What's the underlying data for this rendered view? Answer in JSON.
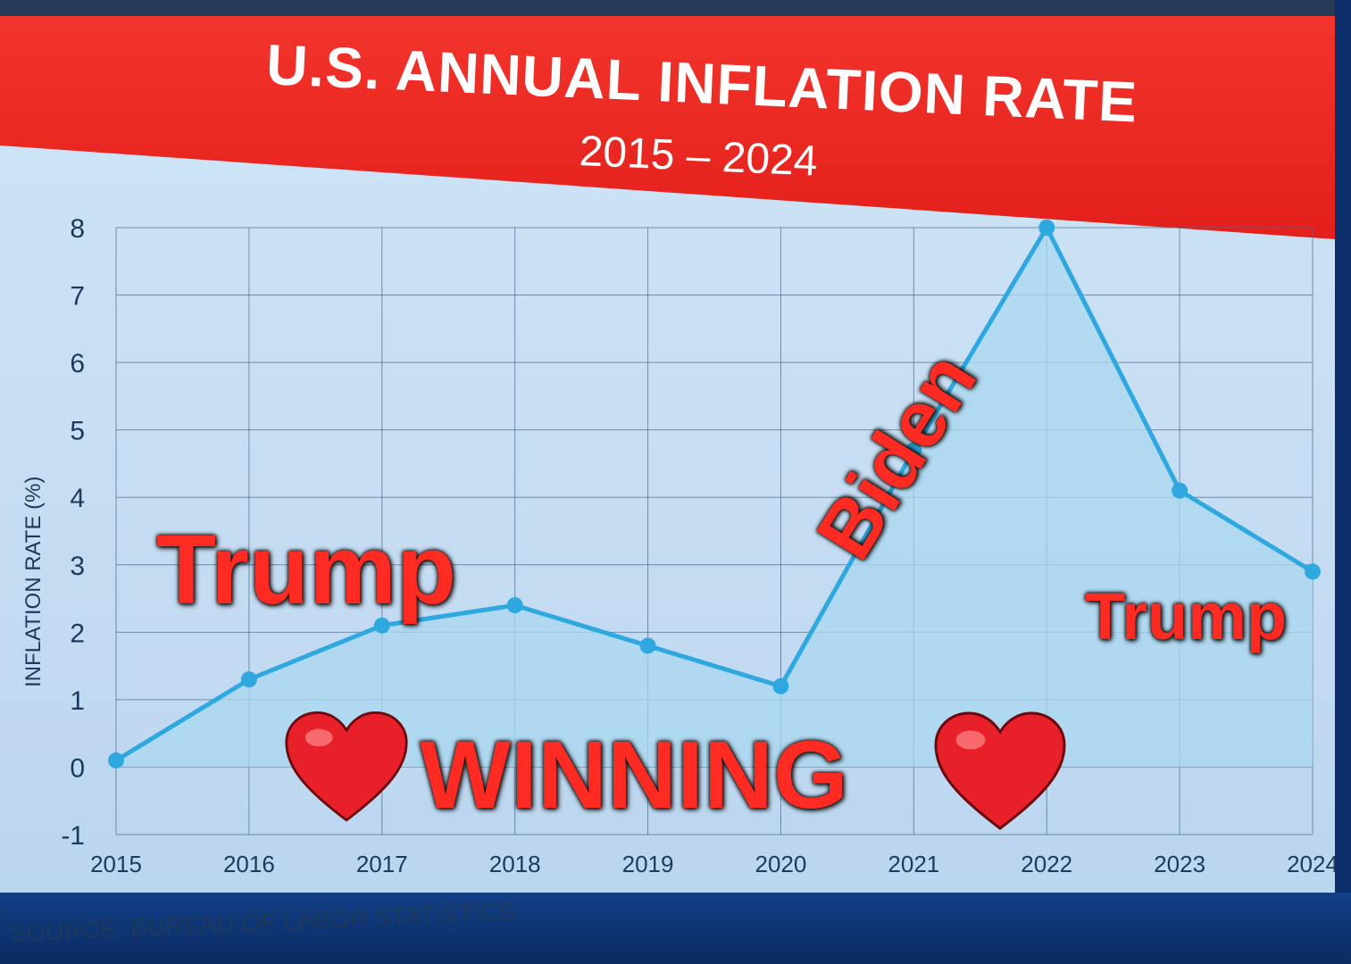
{
  "header": {
    "title": "U.S. ANNUAL INFLATION RATE",
    "subtitle": "2015 – 2024"
  },
  "source": "SOURCE: BUREAU OF LABOR STATISTICS",
  "annotations": {
    "trump_left": "Trump",
    "biden": "Biden",
    "trump_right": "Trump",
    "winning": "WINNING",
    "heart_icon": "heart-icon"
  },
  "colors": {
    "title_band": "#e41f1b",
    "line": "#2fa8e0",
    "area": "#a9d8f0",
    "annotation": "#ff2a22"
  },
  "chart_data": {
    "type": "area",
    "title": "U.S. ANNUAL INFLATION RATE",
    "subtitle": "2015 – 2024",
    "xlabel": "",
    "ylabel": "INFLATION RATE (%)",
    "categories": [
      "2015",
      "2016",
      "2017",
      "2018",
      "2019",
      "2020",
      "2021",
      "2022",
      "2023",
      "2024"
    ],
    "values": [
      0.1,
      1.3,
      2.1,
      2.4,
      1.8,
      1.2,
      4.7,
      8.0,
      4.1,
      2.9
    ],
    "yticks": [
      "-1",
      "0",
      "1",
      "2",
      "3",
      "4",
      "5",
      "6",
      "7",
      "8"
    ],
    "ylim": [
      -1,
      8
    ],
    "grid": true,
    "legend": "none"
  }
}
